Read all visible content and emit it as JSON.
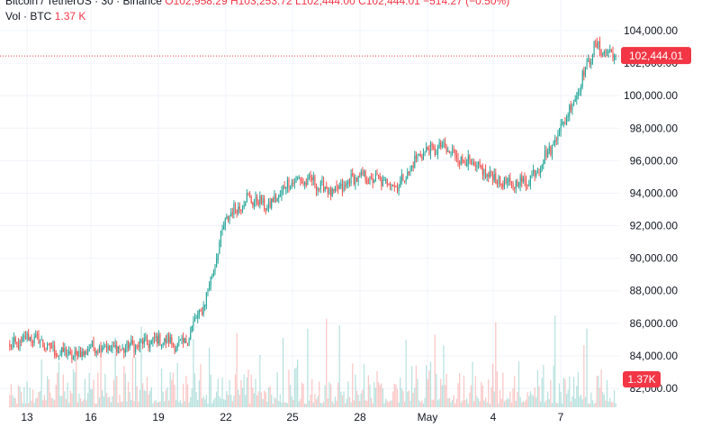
{
  "header": {
    "symbol_line_prefix": "Bitcoin / TetherUS · 30 · Binance",
    "symbol_line_values": "O102,958.29 H103,253.72 L102,444.00 C102,444.01 −514.27 (−0.50%)",
    "volume_label": "Vol · BTC",
    "volume_value": "1.37 K"
  },
  "price_axis": {
    "ticks": [
      "104,000.00",
      "102,000.00",
      "100,000.00",
      "98,000.00",
      "96,000.00",
      "94,000.00",
      "92,000.00",
      "90,000.00",
      "88,000.00",
      "86,000.00",
      "84,000.00",
      "82,000.00"
    ],
    "current_price_label": "102,444.01",
    "volume_badge_label": "1.37K"
  },
  "time_axis": {
    "labels": [
      "13",
      "16",
      "19",
      "22",
      "25",
      "28",
      "May",
      "4",
      "7"
    ]
  },
  "colors": {
    "up": "#26a69a",
    "down": "#ef5350",
    "price_badge": "#f23645",
    "grid": "#f0f3fa"
  },
  "chart_data": {
    "type": "candlestick",
    "ylim": [
      81500,
      105000
    ],
    "anchors": [
      {
        "date": "Apr 12",
        "price": 84500
      },
      {
        "date": "Apr 13",
        "price": 85200
      },
      {
        "date": "Apr 14",
        "price": 84300
      },
      {
        "date": "Apr 15",
        "price": 84000
      },
      {
        "date": "Apr 16",
        "price": 84600
      },
      {
        "date": "Apr 17",
        "price": 84400
      },
      {
        "date": "Apr 18",
        "price": 84700
      },
      {
        "date": "Apr 19",
        "price": 85000
      },
      {
        "date": "Apr 20",
        "price": 84600
      },
      {
        "date": "Apr 21",
        "price": 87200
      },
      {
        "date": "Apr 22",
        "price": 92500
      },
      {
        "date": "Apr 23",
        "price": 93700
      },
      {
        "date": "Apr 24",
        "price": 93200
      },
      {
        "date": "Apr 25",
        "price": 94800
      },
      {
        "date": "Apr 26",
        "price": 94700
      },
      {
        "date": "Apr 27",
        "price": 94000
      },
      {
        "date": "Apr 28",
        "price": 95000
      },
      {
        "date": "Apr 29",
        "price": 94800
      },
      {
        "date": "Apr 30",
        "price": 94500
      },
      {
        "date": "May 1",
        "price": 96500
      },
      {
        "date": "May 2",
        "price": 96800
      },
      {
        "date": "May 3",
        "price": 96000
      },
      {
        "date": "May 4",
        "price": 95200
      },
      {
        "date": "May 5",
        "price": 94500
      },
      {
        "date": "May 6",
        "price": 94800
      },
      {
        "date": "May 7",
        "price": 96800
      },
      {
        "date": "May 8",
        "price": 99500
      },
      {
        "date": "May 9",
        "price": 103000
      },
      {
        "date": "May 9 (last)",
        "price": 102444.01
      }
    ]
  }
}
